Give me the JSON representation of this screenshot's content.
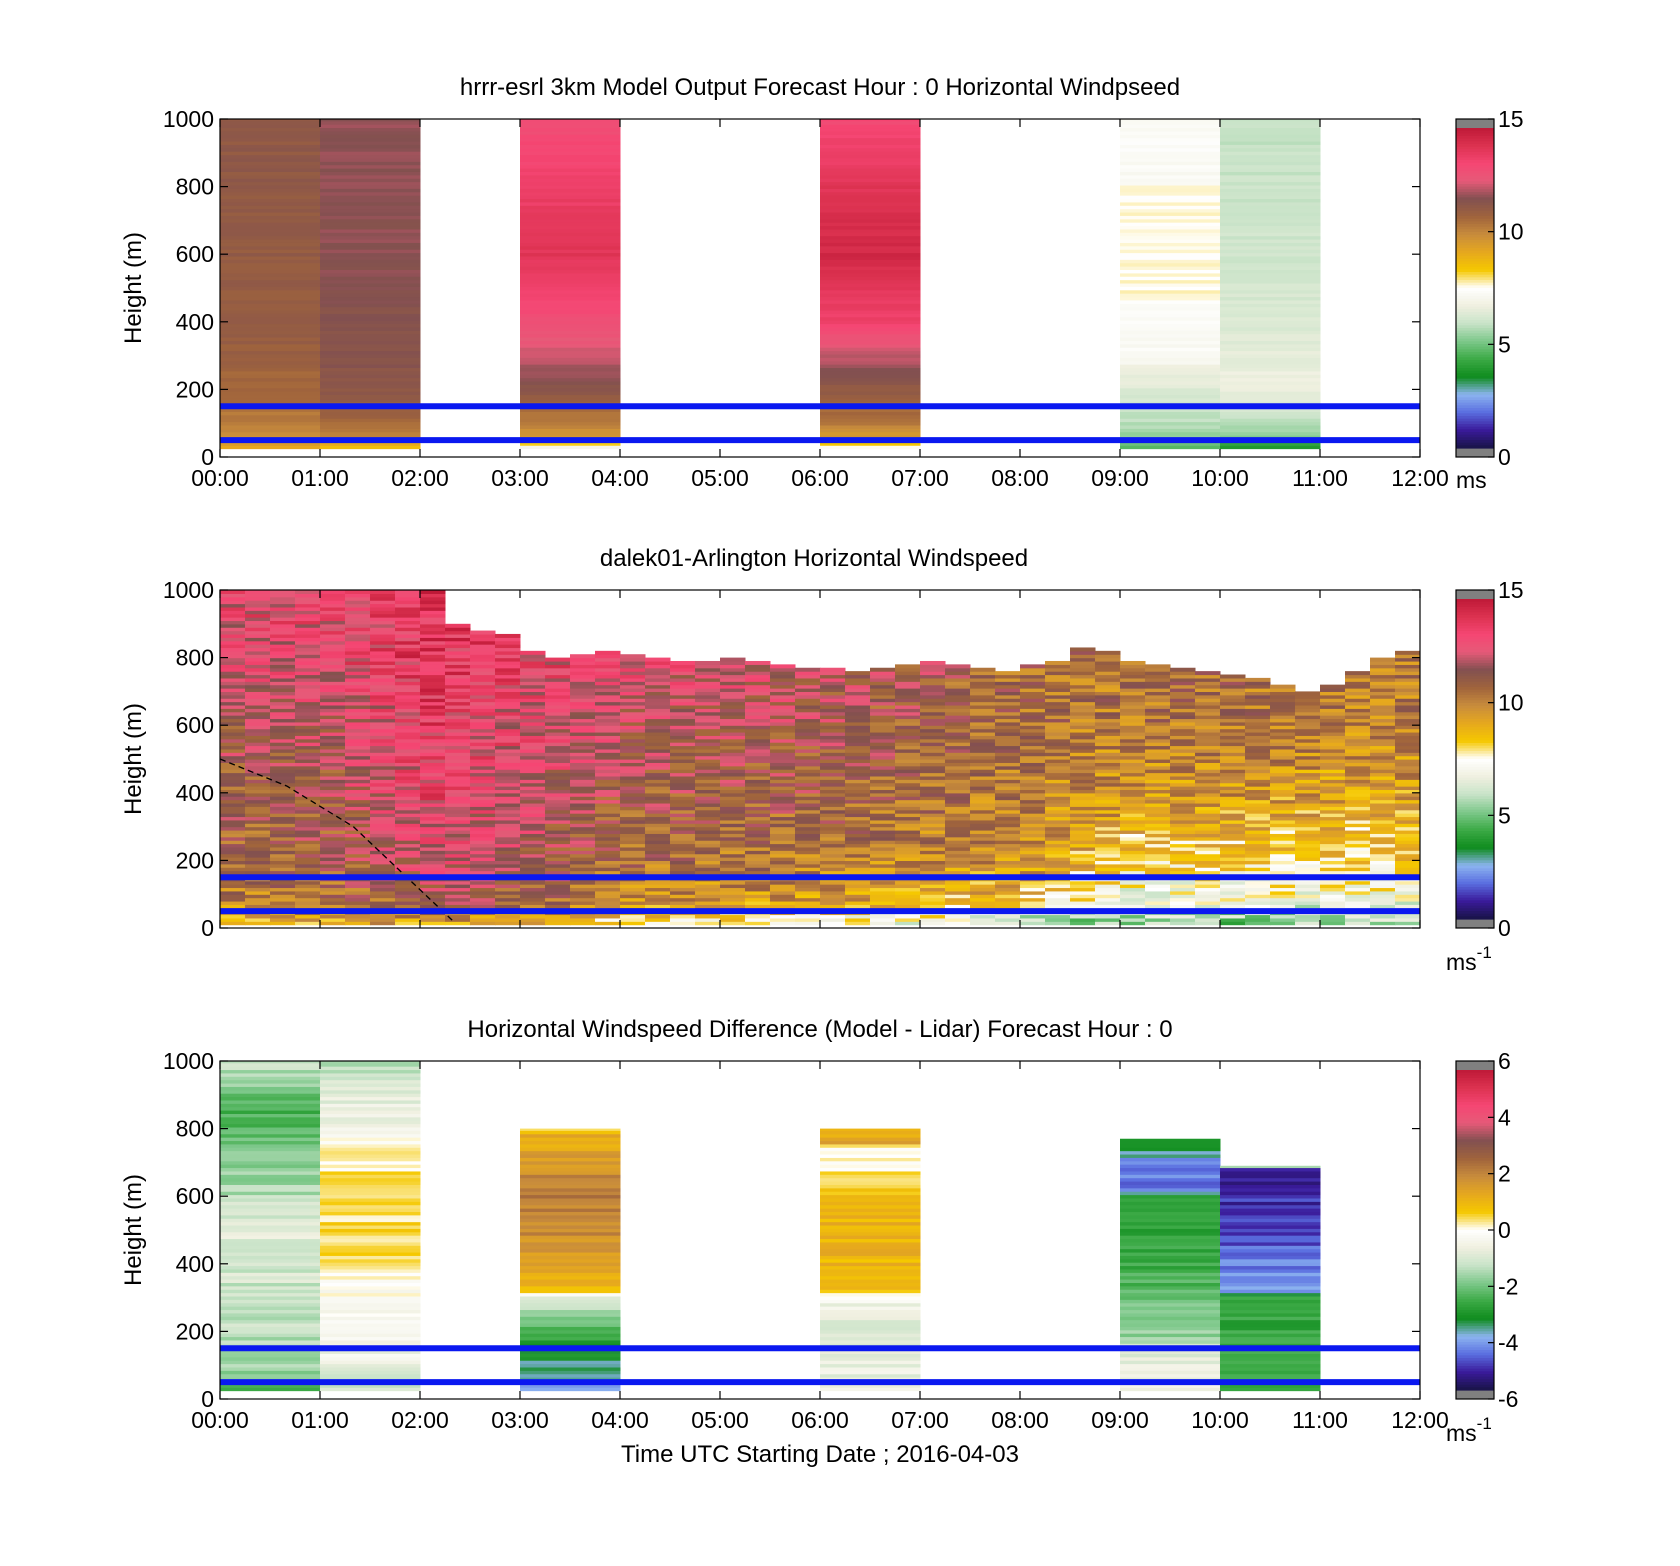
{
  "colors": {
    "reference_lines": "#0a18f0",
    "background": "#ffffff",
    "colormap_speed": [
      "#191347",
      "#3a1a9a",
      "#5a6ee0",
      "#8cb4f0",
      "#0f8c1e",
      "#3caa46",
      "#7dc88a",
      "#c8e3c8",
      "#f0f0e0",
      "#ffffff",
      "#f5c800",
      "#e6a81e",
      "#c88c3c",
      "#a0643c",
      "#825050",
      "#e65a78",
      "#f54673",
      "#dc3250",
      "#be1937"
    ],
    "colormap_diff": [
      "#191347",
      "#3a1a9a",
      "#5a6ee0",
      "#8cb4f0",
      "#0f8c1e",
      "#3caa46",
      "#7dc88a",
      "#c8e3c8",
      "#f0f0e0",
      "#ffffff",
      "#f5c800",
      "#e6a81e",
      "#c88c3c",
      "#a0643c",
      "#825050",
      "#e65a78",
      "#f54673",
      "#dc3250",
      "#be1937"
    ]
  },
  "chart_data": [
    {
      "type": "heatmap",
      "title": "hrrr-esrl 3km Model Output   Forecast Hour : 0 Horizontal Windpseed",
      "xlabel": "",
      "ylabel": "Height (m)",
      "xlim": [
        "00:00",
        "12:00"
      ],
      "ylim": [
        0,
        1000
      ],
      "x_ticks": [
        "00:00",
        "01:00",
        "02:00",
        "03:00",
        "04:00",
        "05:00",
        "06:00",
        "07:00",
        "08:00",
        "09:00",
        "10:00",
        "11:00",
        "12:00"
      ],
      "y_ticks": [
        0,
        200,
        400,
        600,
        800,
        1000
      ],
      "colorbar": {
        "min": 0,
        "max": 15,
        "ticks": [
          0,
          5,
          10,
          15
        ],
        "unit": "ms"
      },
      "reference_lines_m": [
        50,
        150
      ],
      "hours": [
        {
          "start": "00:00",
          "profile": [
            [
              25,
              9.0
            ],
            [
              60,
              10.0
            ],
            [
              150,
              10.6
            ],
            [
              300,
              11.0
            ],
            [
              600,
              11.2
            ],
            [
              1000,
              11.3
            ]
          ]
        },
        {
          "start": "01:00",
          "profile": [
            [
              25,
              8.4
            ],
            [
              60,
              10.2
            ],
            [
              150,
              11.2
            ],
            [
              300,
              11.5
            ],
            [
              600,
              11.7
            ],
            [
              1000,
              11.8
            ]
          ]
        },
        {
          "start": "03:00",
          "profile": [
            [
              25,
              6.2
            ],
            [
              50,
              9.4
            ],
            [
              100,
              10.3
            ],
            [
              200,
              11.4
            ],
            [
              300,
              12.2
            ],
            [
              400,
              13.0
            ],
            [
              600,
              14.0
            ],
            [
              800,
              13.6
            ],
            [
              1000,
              13.0
            ]
          ]
        },
        {
          "start": "06:00",
          "profile": [
            [
              25,
              7.0
            ],
            [
              50,
              9.4
            ],
            [
              100,
              10.4
            ],
            [
              200,
              11.2
            ],
            [
              300,
              12.2
            ],
            [
              400,
              13.5
            ],
            [
              600,
              14.5
            ],
            [
              800,
              14.0
            ],
            [
              1000,
              13.2
            ]
          ]
        },
        {
          "start": "09:00",
          "profile": [
            [
              25,
              4.3
            ],
            [
              60,
              5.3
            ],
            [
              150,
              6.0
            ],
            [
              250,
              6.6
            ],
            [
              300,
              7.2
            ],
            [
              450,
              7.3
            ],
            [
              455,
              7.6
            ],
            [
              800,
              7.6
            ],
            [
              810,
              7.2
            ],
            [
              1000,
              7.3
            ]
          ]
        },
        {
          "start": "10:00",
          "profile": [
            [
              25,
              3.5
            ],
            [
              60,
              5.0
            ],
            [
              150,
              6.4
            ],
            [
              250,
              6.6
            ],
            [
              400,
              6.2
            ],
            [
              600,
              6.0
            ],
            [
              1000,
              5.8
            ]
          ]
        }
      ]
    },
    {
      "type": "heatmap",
      "title": "dalek01-Arlington  Horizontal Windspeed",
      "xlabel": "",
      "ylabel": "Height (m)",
      "xlim": [
        "00:00",
        "12:00"
      ],
      "ylim": [
        0,
        1000
      ],
      "x_ticks": [],
      "y_ticks": [
        0,
        200,
        400,
        600,
        800,
        1000
      ],
      "colorbar": {
        "min": 0,
        "max": 15,
        "ticks": [
          0,
          5,
          10,
          15
        ],
        "unit": "ms",
        "unit_exponent": "-1"
      },
      "reference_lines_m": [
        50,
        150
      ],
      "annotations": [
        {
          "kind": "dashed-curve",
          "points": [
            [
              "00:00",
              500
            ],
            [
              "00:40",
              420
            ],
            [
              "01:20",
              300
            ],
            [
              "01:50",
              160
            ],
            [
              "02:20",
              20
            ]
          ]
        }
      ],
      "observation_columns_per_hour": 4,
      "top_of_data_m": [
        [
          1000,
          1000,
          1000,
          1000
        ],
        [
          1000,
          1000,
          1000,
          1000
        ],
        [
          1000,
          900,
          880,
          870
        ],
        [
          820,
          800,
          810,
          820
        ],
        [
          810,
          800,
          790,
          790
        ],
        [
          800,
          790,
          780,
          770
        ],
        [
          770,
          760,
          770,
          780
        ],
        [
          790,
          780,
          770,
          760
        ],
        [
          780,
          790,
          830,
          820
        ],
        [
          790,
          780,
          770,
          760
        ],
        [
          750,
          740,
          720,
          700
        ],
        [
          720,
          760,
          800,
          820
        ]
      ],
      "hour_profiles": [
        [
          [
            20,
            8.8
          ],
          [
            80,
            10.2
          ],
          [
            200,
            11.0
          ],
          [
            400,
            11.3
          ],
          [
            600,
            11.8
          ],
          [
            800,
            12.8
          ],
          [
            1000,
            13.0
          ]
        ],
        [
          [
            20,
            9.0
          ],
          [
            80,
            10.5
          ],
          [
            200,
            11.2
          ],
          [
            400,
            11.6
          ],
          [
            600,
            12.0
          ],
          [
            800,
            12.8
          ],
          [
            1000,
            13.0
          ]
        ],
        [
          [
            20,
            9.5
          ],
          [
            80,
            11.5
          ],
          [
            200,
            12.6
          ],
          [
            400,
            13.2
          ],
          [
            600,
            13.5
          ],
          [
            800,
            13.8
          ],
          [
            1000,
            14.0
          ]
        ],
        [
          [
            20,
            9.0
          ],
          [
            80,
            11.0
          ],
          [
            200,
            11.8
          ],
          [
            400,
            12.4
          ],
          [
            600,
            12.8
          ],
          [
            800,
            13.2
          ],
          [
            1000,
            13.3
          ]
        ],
        [
          [
            20,
            8.2
          ],
          [
            80,
            9.8
          ],
          [
            200,
            10.8
          ],
          [
            400,
            11.4
          ],
          [
            600,
            12.0
          ],
          [
            800,
            12.8
          ],
          [
            1000,
            13.0
          ]
        ],
        [
          [
            20,
            7.6
          ],
          [
            80,
            9.6
          ],
          [
            200,
            10.6
          ],
          [
            400,
            11.3
          ],
          [
            600,
            11.8
          ],
          [
            800,
            12.6
          ],
          [
            1000,
            12.8
          ]
        ],
        [
          [
            20,
            7.0
          ],
          [
            80,
            9.4
          ],
          [
            200,
            10.4
          ],
          [
            400,
            11.2
          ],
          [
            600,
            11.6
          ],
          [
            800,
            12.0
          ],
          [
            1000,
            12.4
          ]
        ],
        [
          [
            20,
            7.0
          ],
          [
            80,
            9.0
          ],
          [
            200,
            10.0
          ],
          [
            400,
            10.8
          ],
          [
            600,
            11.2
          ],
          [
            800,
            11.6
          ],
          [
            1000,
            12.0
          ]
        ],
        [
          [
            20,
            5.6
          ],
          [
            80,
            8.4
          ],
          [
            200,
            9.6
          ],
          [
            400,
            10.2
          ],
          [
            600,
            10.6
          ],
          [
            800,
            10.8
          ],
          [
            1000,
            11.0
          ]
        ],
        [
          [
            20,
            5.2
          ],
          [
            80,
            6.6
          ],
          [
            200,
            8.2
          ],
          [
            400,
            9.6
          ],
          [
            600,
            10.4
          ],
          [
            800,
            10.6
          ],
          [
            1000,
            10.8
          ]
        ],
        [
          [
            20,
            5.0
          ],
          [
            80,
            6.8
          ],
          [
            200,
            8.0
          ],
          [
            400,
            9.6
          ],
          [
            600,
            10.6
          ],
          [
            800,
            10.8
          ],
          [
            1000,
            11.0
          ]
        ],
        [
          [
            20,
            5.2
          ],
          [
            80,
            7.0
          ],
          [
            200,
            8.2
          ],
          [
            400,
            9.4
          ],
          [
            600,
            10.2
          ],
          [
            800,
            10.2
          ],
          [
            1000,
            10.2
          ]
        ]
      ]
    },
    {
      "type": "heatmap",
      "title": "Horizontal Windspeed Difference (Model - Lidar) Forecast Hour : 0",
      "xlabel": "Time UTC  Starting Date ; 2016-04-03",
      "ylabel": "Height (m)",
      "xlim": [
        "00:00",
        "12:00"
      ],
      "ylim": [
        0,
        1000
      ],
      "x_ticks": [
        "00:00",
        "01:00",
        "02:00",
        "03:00",
        "04:00",
        "05:00",
        "06:00",
        "07:00",
        "08:00",
        "09:00",
        "10:00",
        "11:00",
        "12:00"
      ],
      "y_ticks": [
        0,
        200,
        400,
        600,
        800,
        1000
      ],
      "colorbar": {
        "min": -6,
        "max": 6,
        "ticks": [
          -6,
          -4,
          -2,
          0,
          2,
          4,
          6
        ],
        "unit": "ms",
        "unit_exponent": "-1"
      },
      "reference_lines_m": [
        50,
        150
      ],
      "hours": [
        {
          "start": "00:00",
          "top_m": 1000,
          "profile": [
            [
              25,
              -2.4
            ],
            [
              100,
              -1.6
            ],
            [
              300,
              -1.3
            ],
            [
              500,
              -0.9
            ],
            [
              700,
              -2.0
            ],
            [
              850,
              -2.5
            ],
            [
              1000,
              -1.2
            ]
          ]
        },
        {
          "start": "01:00",
          "top_m": 1000,
          "profile": [
            [
              25,
              -1.4
            ],
            [
              100,
              -0.6
            ],
            [
              300,
              -0.2
            ],
            [
              360,
              0.0
            ],
            [
              400,
              0.3
            ],
            [
              600,
              0.5
            ],
            [
              720,
              0.3
            ],
            [
              800,
              -0.5
            ],
            [
              1000,
              -1.4
            ]
          ]
        },
        {
          "start": "03:00",
          "top_m": 800,
          "profile": [
            [
              25,
              -4.0
            ],
            [
              100,
              -3.6
            ],
            [
              200,
              -2.6
            ],
            [
              300,
              -1.0
            ],
            [
              320,
              0.8
            ],
            [
              450,
              1.8
            ],
            [
              600,
              2.2
            ],
            [
              700,
              1.8
            ],
            [
              780,
              1.2
            ],
            [
              800,
              0.0
            ]
          ]
        },
        {
          "start": "06:00",
          "top_m": 800,
          "profile": [
            [
              25,
              -0.5
            ],
            [
              100,
              -0.8
            ],
            [
              200,
              -1.0
            ],
            [
              300,
              -0.4
            ],
            [
              330,
              0.8
            ],
            [
              500,
              1.2
            ],
            [
              650,
              0.4
            ],
            [
              740,
              -0.3
            ],
            [
              760,
              1.4
            ],
            [
              800,
              1.4
            ]
          ]
        },
        {
          "start": "09:00",
          "top_m": 770,
          "profile": [
            [
              25,
              -0.6
            ],
            [
              100,
              -0.8
            ],
            [
              200,
              -1.8
            ],
            [
              300,
              -2.2
            ],
            [
              400,
              -2.6
            ],
            [
              500,
              -2.8
            ],
            [
              600,
              -3.0
            ],
            [
              630,
              -4.6
            ],
            [
              700,
              -4.4
            ],
            [
              760,
              -3.0
            ]
          ]
        },
        {
          "start": "10:00",
          "top_m": 690,
          "profile": [
            [
              25,
              -2.8
            ],
            [
              300,
              -2.8
            ],
            [
              320,
              -4.0
            ],
            [
              450,
              -4.8
            ],
            [
              600,
              -5.2
            ],
            [
              680,
              -5.6
            ],
            [
              690,
              -0.5
            ]
          ]
        }
      ]
    }
  ]
}
